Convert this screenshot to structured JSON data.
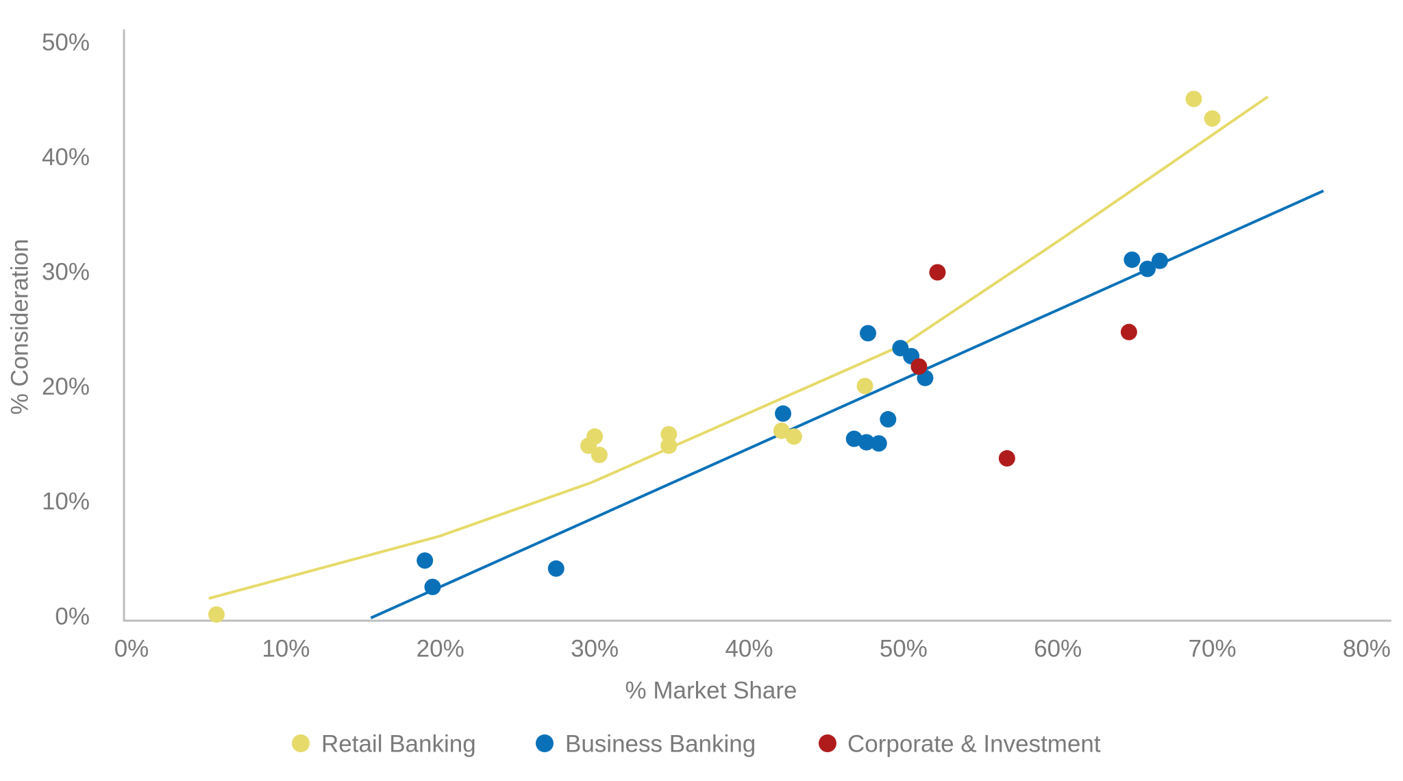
{
  "chart_data": {
    "type": "scatter",
    "x_label": "% Market Share",
    "y_label": "% Consideration",
    "xlim": [
      0,
      80
    ],
    "ylim": [
      0,
      50
    ],
    "xticks": [
      {
        "value": 0,
        "label": "0%"
      },
      {
        "value": 10,
        "label": "10%"
      },
      {
        "value": 20,
        "label": "20%"
      },
      {
        "value": 30,
        "label": "30%"
      },
      {
        "value": 40,
        "label": "40%"
      },
      {
        "value": 50,
        "label": "50%"
      },
      {
        "value": 60,
        "label": "60%"
      },
      {
        "value": 70,
        "label": "70%"
      },
      {
        "value": 80,
        "label": "80%"
      }
    ],
    "yticks": [
      {
        "value": 0,
        "label": "0%"
      },
      {
        "value": 10,
        "label": "10%"
      },
      {
        "value": 20,
        "label": "20%"
      },
      {
        "value": 30,
        "label": "30%"
      },
      {
        "value": 40,
        "label": "40%"
      },
      {
        "value": 50,
        "label": "50%"
      }
    ],
    "legend": "bottom",
    "series": [
      {
        "name": "Retail Banking",
        "color": "#e6da6a",
        "x": [
          5.5,
          29.6,
          30.0,
          30.3,
          34.8,
          34.8,
          42.1,
          42.9,
          47.5,
          68.8,
          70.0
        ],
        "values": [
          0.3,
          15.0,
          15.8,
          14.2,
          16.0,
          15.0,
          16.3,
          15.8,
          20.2,
          45.2,
          43.5
        ],
        "trend": {
          "x": [
            5.0,
            19.9,
            29.8,
            39.9,
            50.0,
            60.0,
            73.6
          ],
          "values": [
            1.7,
            7.1,
            11.8,
            17.8,
            23.8,
            32.8,
            45.4
          ]
        }
      },
      {
        "name": "Business Banking",
        "color": "#0a71b9",
        "x": [
          19.0,
          19.5,
          27.5,
          42.2,
          46.8,
          47.6,
          48.4,
          49.0,
          47.7,
          49.8,
          50.5,
          51.4,
          64.8,
          65.8,
          66.6
        ],
        "values": [
          5.0,
          2.7,
          4.3,
          17.8,
          15.6,
          15.3,
          15.2,
          17.3,
          24.8,
          23.5,
          22.8,
          20.9,
          31.2,
          30.4,
          31.1
        ],
        "trend": {
          "x": [
            15.5,
            77.2
          ],
          "values": [
            0,
            37.2
          ]
        }
      },
      {
        "name": "Corporate & Investment",
        "color": "#b01c1c",
        "x": [
          52.2,
          51.0,
          64.6,
          56.7
        ],
        "values": [
          30.1,
          21.9,
          24.9,
          13.9
        ]
      }
    ]
  }
}
